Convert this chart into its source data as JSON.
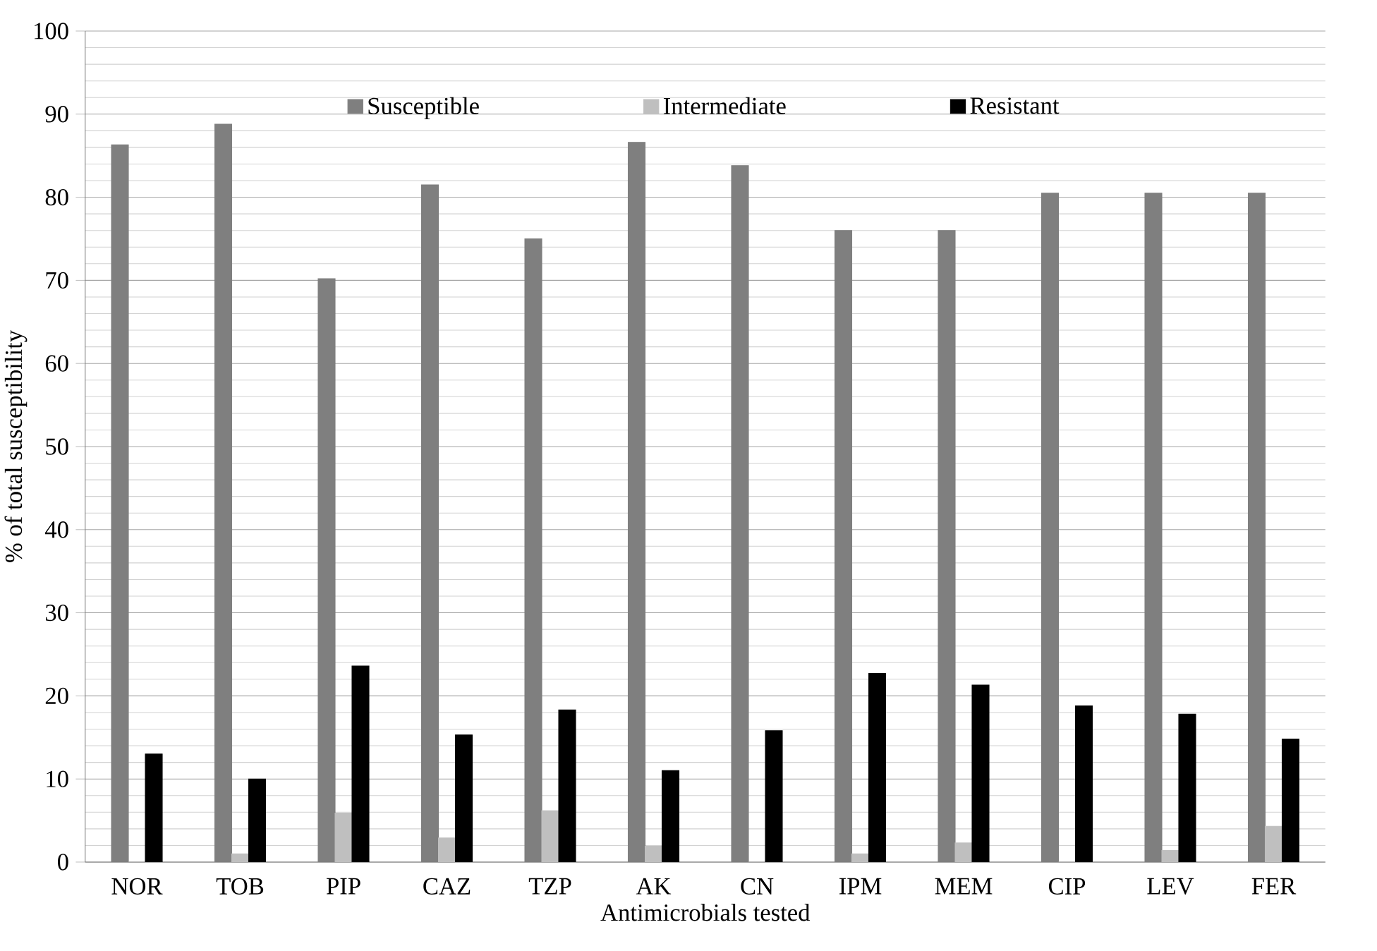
{
  "chart_data": {
    "type": "bar",
    "xlabel": "Antimicrobials tested",
    "ylabel": "% of total susceptibility",
    "categories": [
      "NOR",
      "TOB",
      "PIP",
      "CAZ",
      "TZP",
      "AK",
      "CN",
      "IPM",
      "MEM",
      "CIP",
      "LEV",
      "FER"
    ],
    "series": [
      {
        "name": "Susceptible",
        "color": "#7f7f7f",
        "values": [
          86.3,
          88.8,
          70.2,
          81.5,
          75,
          86.6,
          83.8,
          76,
          76,
          80.5,
          80.5,
          80.5
        ]
      },
      {
        "name": "Intermediate",
        "color": "#bfbfbf",
        "values": [
          0,
          1,
          5.9,
          2.9,
          6.2,
          1.9,
          0,
          1,
          2.3,
          0,
          1.4,
          4.3
        ]
      },
      {
        "name": "Resistant",
        "color": "#000000",
        "values": [
          13,
          10,
          23.6,
          15.3,
          18.3,
          11,
          15.8,
          22.7,
          21.3,
          18.8,
          17.8,
          14.8
        ]
      }
    ],
    "ylim": [
      0,
      100
    ],
    "yticks": [
      0,
      10,
      20,
      30,
      40,
      50,
      60,
      70,
      80,
      90,
      100
    ],
    "grid": "y",
    "legend": "top"
  }
}
